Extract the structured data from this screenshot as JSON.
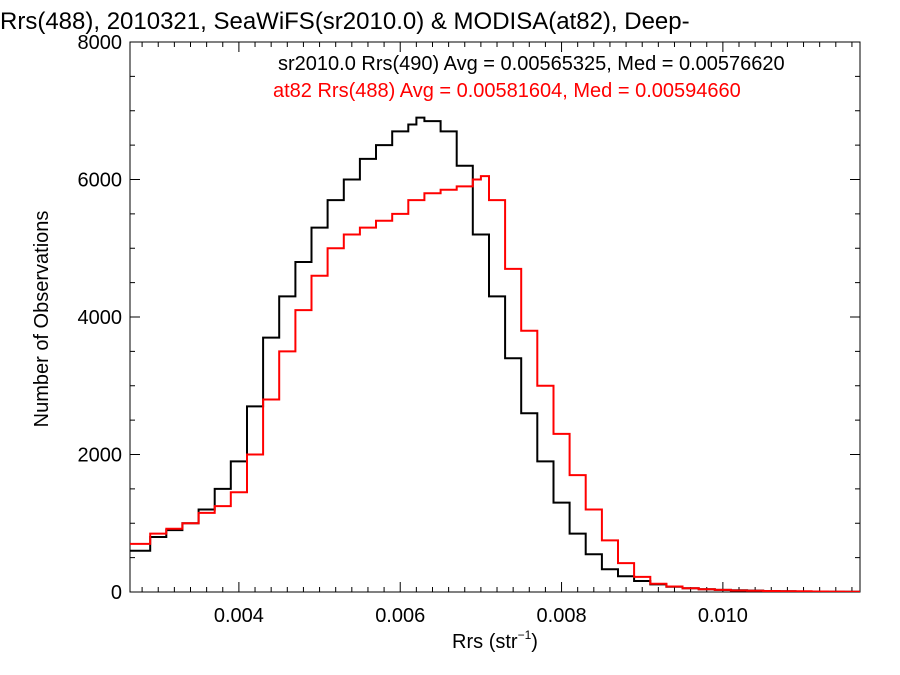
{
  "chart_data": {
    "type": "line",
    "title": "Rrs(488), 2010321, SeaWiFS(sr2010.0) & MODISA(at82), Deep-",
    "xlabel": "Rrs (str",
    "xlabel_sup": "−1",
    "xlabel_close": ")",
    "ylabel": "Number of Observations",
    "xlim": [
      0.00265,
      0.0117
    ],
    "ylim": [
      0,
      8000
    ],
    "x_ticks": [
      0.004,
      0.006,
      0.008,
      0.01
    ],
    "x_tick_labels": [
      "0.004",
      "0.006",
      "0.008",
      "0.010"
    ],
    "y_ticks": [
      0,
      2000,
      4000,
      6000,
      8000
    ],
    "y_tick_labels": [
      "0",
      "2000",
      "4000",
      "6000",
      "8000"
    ],
    "annotations": [
      {
        "text": "sr2010.0 Rrs(490) Avg = 0.00565325, Med = 0.00576620",
        "color": "#000000"
      },
      {
        "text": "at82 Rrs(488) Avg = 0.00581604, Med = 0.00594660",
        "color": "#ff0000"
      }
    ],
    "series": [
      {
        "color": "#000000",
        "x": [
          0.00265,
          0.0029,
          0.0031,
          0.0033,
          0.0035,
          0.0037,
          0.0039,
          0.0041,
          0.0043,
          0.0045,
          0.0047,
          0.0049,
          0.0051,
          0.0053,
          0.0055,
          0.0057,
          0.0059,
          0.0061,
          0.0062,
          0.0063,
          0.0065,
          0.0067,
          0.0069,
          0.0071,
          0.0073,
          0.0075,
          0.0077,
          0.0079,
          0.0081,
          0.0083,
          0.0085,
          0.0087,
          0.0089,
          0.0091,
          0.0093,
          0.0095,
          0.0097,
          0.0099,
          0.0101,
          0.0103,
          0.0105,
          0.0107,
          0.0109,
          0.0111,
          0.0113,
          0.0115,
          0.0117
        ],
        "y": [
          600,
          800,
          900,
          1000,
          1200,
          1500,
          1900,
          2700,
          3700,
          4300,
          4800,
          5300,
          5700,
          6000,
          6300,
          6500,
          6700,
          6800,
          6900,
          6850,
          6700,
          6200,
          5200,
          4300,
          3400,
          2600,
          1900,
          1300,
          850,
          550,
          330,
          230,
          160,
          110,
          75,
          55,
          40,
          30,
          25,
          20,
          15,
          10,
          8,
          6,
          5,
          4,
          3
        ]
      },
      {
        "color": "#ff0000",
        "x": [
          0.00265,
          0.0029,
          0.0031,
          0.0033,
          0.0035,
          0.0037,
          0.0039,
          0.0041,
          0.0043,
          0.0045,
          0.0047,
          0.0049,
          0.0051,
          0.0053,
          0.0055,
          0.0057,
          0.0059,
          0.0061,
          0.0063,
          0.0065,
          0.0067,
          0.0069,
          0.007,
          0.0071,
          0.0073,
          0.0075,
          0.0077,
          0.0079,
          0.0081,
          0.0083,
          0.0085,
          0.0087,
          0.0089,
          0.0091,
          0.0093,
          0.0095,
          0.0097,
          0.0099,
          0.0101,
          0.0103,
          0.0105,
          0.0107,
          0.0109,
          0.0111,
          0.0113,
          0.0115,
          0.0117
        ],
        "y": [
          700,
          850,
          920,
          1000,
          1150,
          1250,
          1450,
          2000,
          2800,
          3500,
          4100,
          4600,
          5000,
          5200,
          5300,
          5400,
          5500,
          5700,
          5800,
          5850,
          5900,
          6000,
          6050,
          5700,
          4700,
          3800,
          3000,
          2300,
          1700,
          1200,
          750,
          420,
          220,
          120,
          80,
          55,
          40,
          30,
          22,
          18,
          15,
          12,
          10,
          8,
          6,
          5,
          4
        ]
      }
    ]
  }
}
